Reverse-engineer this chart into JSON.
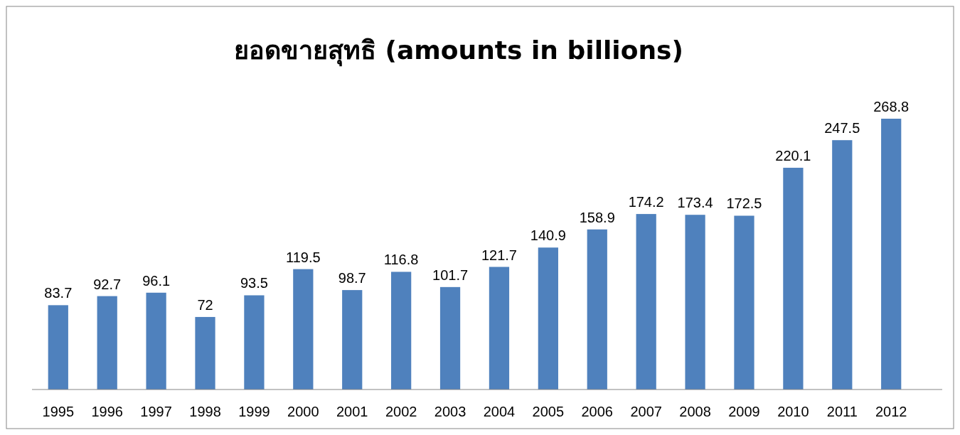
{
  "chart_data": {
    "type": "bar",
    "title": "ยอดขายสุทธิ (amounts in billions)",
    "categories": [
      "1995",
      "1996",
      "1997",
      "1998",
      "1999",
      "2000",
      "2001",
      "2002",
      "2003",
      "2004",
      "2005",
      "2006",
      "2007",
      "2008",
      "2009",
      "2010",
      "2011",
      "2012"
    ],
    "values": [
      83.7,
      92.7,
      96.1,
      72,
      93.5,
      119.5,
      98.7,
      116.8,
      101.7,
      121.7,
      140.9,
      158.9,
      174.2,
      173.4,
      172.5,
      220.1,
      247.5,
      268.8
    ],
    "color": "#4f81bd",
    "data_labels": true
  }
}
